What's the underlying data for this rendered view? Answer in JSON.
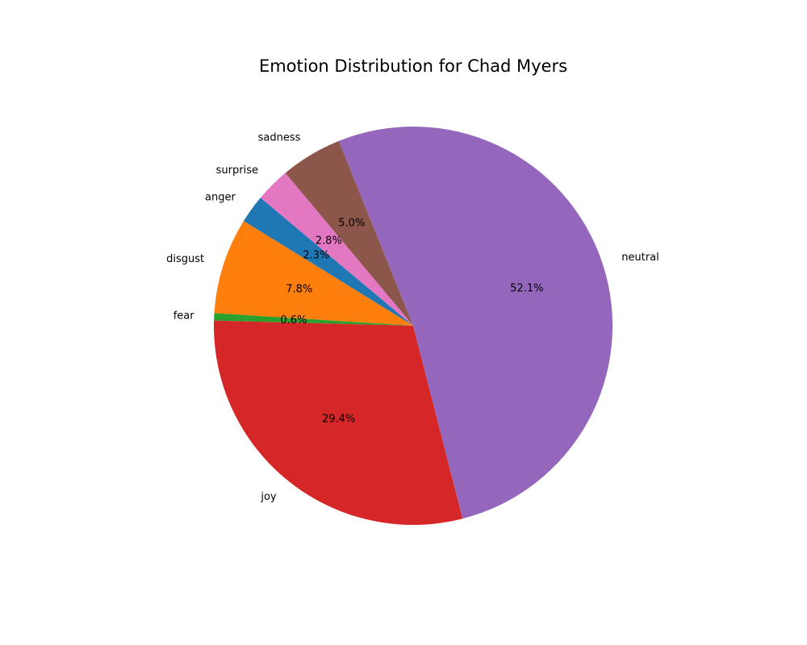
{
  "chart_data": {
    "type": "pie",
    "title": "Emotion Distribution for Chad Myers",
    "slices": [
      {
        "label": "anger",
        "value": 2.3,
        "pct_text": "2.3%",
        "color": "#1f77b4"
      },
      {
        "label": "disgust",
        "value": 7.8,
        "pct_text": "7.8%",
        "color": "#ff7f0e"
      },
      {
        "label": "fear",
        "value": 0.6,
        "pct_text": "0.6%",
        "color": "#2ca02c"
      },
      {
        "label": "joy",
        "value": 29.4,
        "pct_text": "29.4%",
        "color": "#d62728"
      },
      {
        "label": "neutral",
        "value": 52.1,
        "pct_text": "52.1%",
        "color": "#9467bd"
      },
      {
        "label": "sadness",
        "value": 5.0,
        "pct_text": "5.0%",
        "color": "#8c564b"
      },
      {
        "label": "surprise",
        "value": 2.8,
        "pct_text": "2.8%",
        "color": "#e377c2"
      }
    ],
    "start_angle_deg": 140,
    "direction": "counterclockwise",
    "legend": "none"
  }
}
